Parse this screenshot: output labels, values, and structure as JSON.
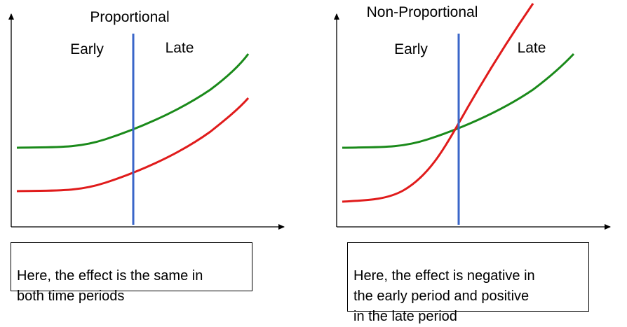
{
  "panels": [
    {
      "title": "Proportional",
      "early_label": "Early",
      "late_label": "Late",
      "caption": "Here, the effect is the same in\nboth time periods",
      "colors": {
        "axis": "#000000",
        "divider": "#3a66c9",
        "green_curve": "#1a8a1a",
        "red_curve": "#e01b1b"
      }
    },
    {
      "title": "Non-Proportional",
      "early_label": "Early",
      "late_label": "Late",
      "caption": "Here, the effect is negative in\nthe early period and positive\nin the late period",
      "colors": {
        "axis": "#000000",
        "divider": "#3a66c9",
        "green_curve": "#1a8a1a",
        "red_curve": "#e01b1b"
      }
    }
  ]
}
